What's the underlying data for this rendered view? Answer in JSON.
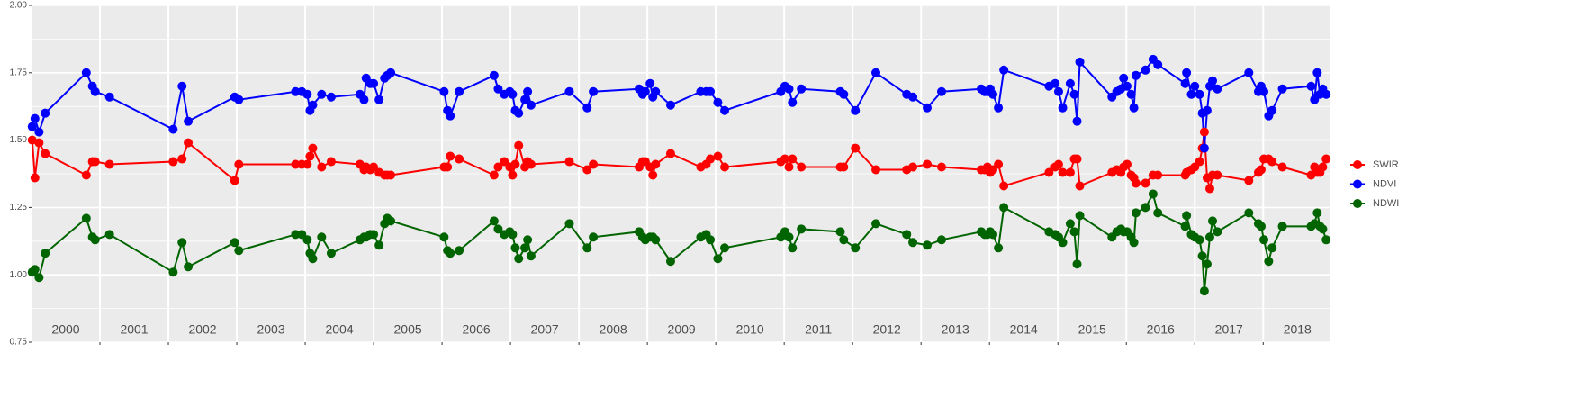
{
  "chart_data": {
    "type": "line",
    "x": [
      2000.01,
      2000.05,
      2000.11,
      2000.2,
      2000.8,
      2000.89,
      2000.93,
      2001.14,
      2002.07,
      2002.2,
      2002.29,
      2002.97,
      2003.03,
      2003.86,
      2003.95,
      2004.03,
      2004.07,
      2004.11,
      2004.24,
      2004.38,
      2004.8,
      2004.86,
      2004.89,
      2004.95,
      2005,
      2005.08,
      2005.16,
      2005.2,
      2005.25,
      2006.03,
      2006.08,
      2006.12,
      2006.25,
      2006.76,
      2006.82,
      2006.91,
      2006.99,
      2007.03,
      2007.07,
      2007.12,
      2007.21,
      2007.25,
      2007.3,
      2007.86,
      2008.12,
      2008.21,
      2008.88,
      2008.93,
      2008.97,
      2009.04,
      2009.08,
      2009.12,
      2009.34,
      2009.78,
      2009.86,
      2009.92,
      2010.03,
      2010.13,
      2010.95,
      2011.01,
      2011.07,
      2011.12,
      2011.25,
      2011.82,
      2011.87,
      2012.04,
      2012.34,
      2012.79,
      2012.88,
      2013.09,
      2013.3,
      2013.88,
      2013.93,
      2013.97,
      2014.01,
      2014.05,
      2014.13,
      2014.21,
      2014.87,
      2014.96,
      2015.01,
      2015.07,
      2015.18,
      2015.24,
      2015.28,
      2015.32,
      2015.79,
      2015.86,
      2015.92,
      2015.96,
      2016.01,
      2016.07,
      2016.11,
      2016.14,
      2016.28,
      2016.39,
      2016.46,
      2016.86,
      2016.88,
      2016.95,
      2017,
      2017.07,
      2017.11,
      2017.14,
      2017.18,
      2017.22,
      2017.26,
      2017.33,
      2017.79,
      2017.93,
      2017.97,
      2018.01,
      2018.08,
      2018.13,
      2018.28,
      2018.7,
      2018.75,
      2018.79,
      2018.83,
      2018.87,
      2018.92
    ],
    "series": [
      {
        "name": "SWIR",
        "color": "#ff0000",
        "values": [
          1.5,
          1.36,
          1.49,
          1.45,
          1.37,
          1.42,
          1.42,
          1.41,
          1.42,
          1.43,
          1.49,
          1.35,
          1.41,
          1.41,
          1.41,
          1.41,
          1.44,
          1.47,
          1.4,
          1.42,
          1.41,
          1.39,
          1.4,
          1.39,
          1.4,
          1.38,
          1.37,
          1.37,
          1.37,
          1.4,
          1.4,
          1.44,
          1.43,
          1.37,
          1.4,
          1.42,
          1.4,
          1.37,
          1.41,
          1.48,
          1.4,
          1.42,
          1.41,
          1.42,
          1.39,
          1.41,
          1.4,
          1.42,
          1.42,
          1.4,
          1.37,
          1.41,
          1.45,
          1.4,
          1.41,
          1.43,
          1.44,
          1.4,
          1.42,
          1.43,
          1.4,
          1.43,
          1.4,
          1.4,
          1.4,
          1.47,
          1.39,
          1.39,
          1.4,
          1.41,
          1.4,
          1.39,
          1.39,
          1.4,
          1.38,
          1.39,
          1.41,
          1.33,
          1.38,
          1.4,
          1.41,
          1.38,
          1.38,
          1.43,
          1.43,
          1.33,
          1.38,
          1.39,
          1.38,
          1.4,
          1.41,
          1.37,
          1.36,
          1.34,
          1.34,
          1.37,
          1.37,
          1.37,
          1.38,
          1.39,
          1.4,
          1.42,
          1.47,
          1.53,
          1.36,
          1.32,
          1.37,
          1.37,
          1.35,
          1.38,
          1.39,
          1.43,
          1.43,
          1.42,
          1.4,
          1.37,
          1.4,
          1.38,
          1.38,
          1.4,
          1.43
        ]
      },
      {
        "name": "NDVI",
        "color": "#0000ff",
        "values": [
          1.55,
          1.58,
          1.53,
          1.6,
          1.75,
          1.7,
          1.68,
          1.66,
          1.54,
          1.7,
          1.57,
          1.66,
          1.65,
          1.68,
          1.68,
          1.67,
          1.61,
          1.63,
          1.67,
          1.66,
          1.67,
          1.65,
          1.73,
          1.71,
          1.71,
          1.65,
          1.73,
          1.74,
          1.75,
          1.68,
          1.61,
          1.59,
          1.68,
          1.74,
          1.69,
          1.67,
          1.68,
          1.67,
          1.61,
          1.6,
          1.65,
          1.68,
          1.63,
          1.68,
          1.62,
          1.68,
          1.69,
          1.67,
          1.68,
          1.71,
          1.66,
          1.68,
          1.63,
          1.68,
          1.68,
          1.68,
          1.64,
          1.61,
          1.68,
          1.7,
          1.69,
          1.64,
          1.69,
          1.68,
          1.67,
          1.61,
          1.75,
          1.67,
          1.66,
          1.62,
          1.68,
          1.69,
          1.68,
          1.68,
          1.69,
          1.67,
          1.62,
          1.76,
          1.7,
          1.71,
          1.68,
          1.62,
          1.71,
          1.67,
          1.57,
          1.79,
          1.66,
          1.68,
          1.69,
          1.73,
          1.7,
          1.67,
          1.62,
          1.74,
          1.76,
          1.8,
          1.78,
          1.71,
          1.75,
          1.67,
          1.7,
          1.67,
          1.6,
          1.47,
          1.61,
          1.7,
          1.72,
          1.69,
          1.75,
          1.68,
          1.7,
          1.68,
          1.59,
          1.61,
          1.69,
          1.7,
          1.65,
          1.75,
          1.67,
          1.69,
          1.67
        ]
      },
      {
        "name": "NDWI",
        "color": "#006400",
        "values": [
          1.01,
          1.02,
          0.99,
          1.08,
          1.21,
          1.14,
          1.13,
          1.15,
          1.01,
          1.12,
          1.03,
          1.12,
          1.09,
          1.15,
          1.15,
          1.13,
          1.08,
          1.06,
          1.14,
          1.08,
          1.13,
          1.14,
          1.14,
          1.15,
          1.15,
          1.11,
          1.19,
          1.21,
          1.2,
          1.14,
          1.09,
          1.08,
          1.09,
          1.2,
          1.17,
          1.15,
          1.16,
          1.15,
          1.1,
          1.06,
          1.1,
          1.13,
          1.07,
          1.19,
          1.1,
          1.14,
          1.16,
          1.14,
          1.13,
          1.14,
          1.14,
          1.13,
          1.05,
          1.14,
          1.15,
          1.13,
          1.06,
          1.1,
          1.14,
          1.16,
          1.14,
          1.1,
          1.17,
          1.16,
          1.13,
          1.1,
          1.19,
          1.15,
          1.12,
          1.11,
          1.13,
          1.16,
          1.15,
          1.15,
          1.16,
          1.15,
          1.1,
          1.25,
          1.16,
          1.15,
          1.14,
          1.12,
          1.19,
          1.16,
          1.04,
          1.22,
          1.14,
          1.16,
          1.17,
          1.16,
          1.16,
          1.14,
          1.12,
          1.23,
          1.25,
          1.3,
          1.23,
          1.18,
          1.22,
          1.15,
          1.14,
          1.13,
          1.07,
          0.94,
          1.04,
          1.14,
          1.2,
          1.16,
          1.23,
          1.19,
          1.18,
          1.13,
          1.05,
          1.1,
          1.18,
          1.18,
          1.19,
          1.23,
          1.18,
          1.17,
          1.13
        ]
      }
    ],
    "xlim": [
      2000,
      2018.97
    ],
    "xticks": [
      2001,
      2002,
      2003,
      2004,
      2005,
      2006,
      2007,
      2008,
      2009,
      2010,
      2011,
      2012,
      2013,
      2014,
      2015,
      2016,
      2017,
      2018
    ],
    "year_labels": [
      2000,
      2001,
      2002,
      2003,
      2004,
      2005,
      2006,
      2007,
      2008,
      2009,
      2010,
      2011,
      2012,
      2013,
      2014,
      2015,
      2016,
      2017,
      2018
    ],
    "ylim": [
      0.75,
      2.0
    ],
    "yticks": [
      0.75,
      {
        "value": 1.0,
        "label": "1.00"
      },
      1.25,
      {
        "value": 1.5,
        "label": "1.50"
      },
      1.75,
      {
        "value": 2.0,
        "label": "2.00"
      }
    ],
    "grid": true,
    "legend": "right"
  }
}
